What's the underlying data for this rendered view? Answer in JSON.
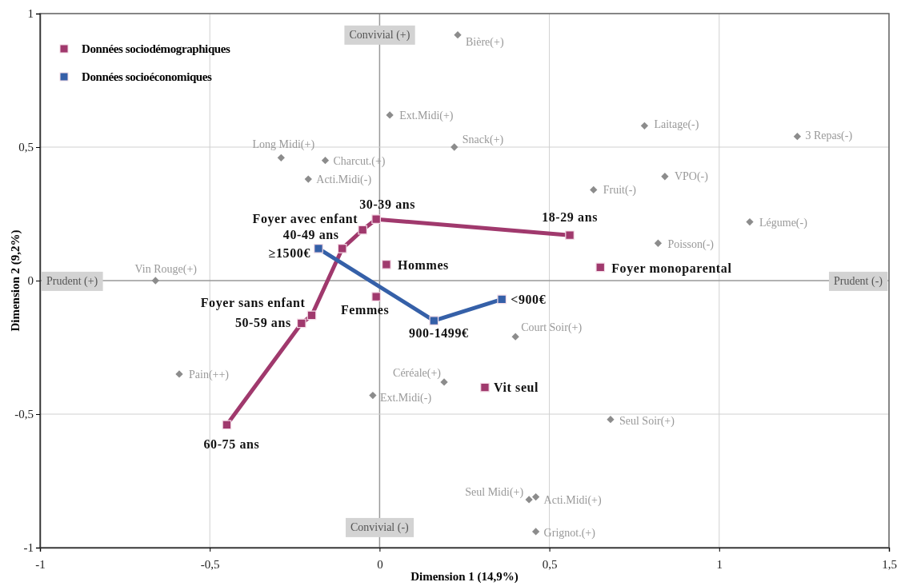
{
  "chart_data": {
    "type": "scatter",
    "xlabel": "Dimension 1 (14,9%)",
    "ylabel": "Dimension 2 (9,2%)",
    "xlim": [
      -1,
      1.5
    ],
    "ylim": [
      -1,
      1
    ],
    "xticks": [
      -1,
      {
        "value": -0.5,
        "label": "-0,5"
      },
      0,
      {
        "value": 0.5,
        "label": "0,5"
      },
      1,
      {
        "value": 1.5,
        "label": "1,5"
      }
    ],
    "yticks": [
      -1,
      {
        "value": -0.5,
        "label": "-0,5"
      },
      0,
      {
        "value": 0.5,
        "label": "0,5"
      },
      1
    ],
    "grid": true,
    "legend": "top left",
    "marker": "square",
    "series": [
      {
        "marker": "diamond",
        "color": "#8c8c8c",
        "x": [
          0.23,
          0.03,
          0.22,
          0.78,
          1.23,
          -0.29,
          -0.16,
          -0.21,
          0.84,
          0.63,
          1.09,
          0.82,
          -0.66,
          0.4,
          -0.59,
          0.19,
          -0.02,
          0.68,
          0.44,
          0.46,
          0.46
        ],
        "values": [
          0.92,
          0.62,
          0.5,
          0.58,
          0.54,
          0.46,
          0.45,
          0.38,
          0.39,
          0.34,
          0.22,
          0.14,
          0.0,
          -0.21,
          -0.35,
          -0.38,
          -0.43,
          -0.52,
          -0.82,
          -0.81,
          -0.94
        ]
      },
      {
        "type": "line",
        "name": "Données sociodémographiques",
        "color": "#a0396d",
        "x": [
          -0.45,
          -0.23,
          -0.2,
          -0.11,
          -0.05,
          -0.01,
          0.56
        ],
        "values": [
          -0.54,
          -0.16,
          -0.13,
          0.12,
          0.19,
          0.23,
          0.17
        ]
      },
      {
        "color": "#a0396d",
        "x": [
          0.02,
          -0.01,
          0.65,
          0.31
        ],
        "values": [
          0.06,
          -0.06,
          0.05,
          -0.4
        ]
      },
      {
        "type": "line",
        "name": "Données socioéconomiques",
        "color": "#3560a8",
        "x": [
          -0.18,
          0.16,
          0.36
        ],
        "values": [
          0.12,
          -0.15,
          -0.07
        ]
      }
    ],
    "annotations": [
      "Convivial  (+)",
      "Prudent  (+)",
      "Prudent  (-)",
      "Convivial (-)",
      {
        "text": "Bière(+)",
        "x": 0.23,
        "y": 0.92
      },
      {
        "text": "Ext.Midi(+)",
        "x": 0.03,
        "y": 0.62
      },
      {
        "text": "Snack(+)",
        "x": 0.22,
        "y": 0.5
      },
      {
        "text": "Laitage(-)",
        "x": 0.78,
        "y": 0.58
      },
      {
        "text": "3 Repas(-)",
        "x": 1.23,
        "y": 0.54
      },
      {
        "text": "Long Midi(+)",
        "x": -0.29,
        "y": 0.46
      },
      {
        "text": "Charcut.(+)",
        "x": -0.16,
        "y": 0.45
      },
      {
        "text": "Acti.Midi(-)",
        "x": -0.21,
        "y": 0.38
      },
      {
        "text": "VPO(-)",
        "x": 0.84,
        "y": 0.39
      },
      {
        "text": "Fruit(-)",
        "x": 0.63,
        "y": 0.34
      },
      {
        "text": "Légume(-)",
        "x": 1.09,
        "y": 0.22
      },
      {
        "text": "Poisson(-)",
        "x": 0.82,
        "y": 0.14
      },
      {
        "text": "Vin Rouge(+)",
        "x": -0.66,
        "y": 0.0
      },
      {
        "text": "Court Soir(+)",
        "x": 0.4,
        "y": -0.21
      },
      {
        "text": "Pain(++)",
        "x": -0.59,
        "y": -0.35
      },
      {
        "text": "Céréale(+)",
        "x": 0.19,
        "y": -0.38
      },
      {
        "text": "Ext.Midi(-)",
        "x": -0.02,
        "y": -0.43
      },
      {
        "text": "Seul Soir(+)",
        "x": 0.68,
        "y": -0.52
      },
      {
        "text": "Seul Midi(+)",
        "x": 0.44,
        "y": -0.82
      },
      {
        "text": "Acti.Midi(+)",
        "x": 0.46,
        "y": -0.81
      },
      {
        "text": "Grignot.(+)",
        "x": 0.46,
        "y": -0.94
      },
      {
        "text": "60-75 ans",
        "x": -0.45,
        "y": -0.54
      },
      {
        "text": "50-59 ans",
        "x": -0.23,
        "y": -0.16
      },
      {
        "text": "Foyer sans enfant",
        "x": -0.2,
        "y": -0.13
      },
      {
        "text": "40-49 ans",
        "x": -0.11,
        "y": 0.12
      },
      {
        "text": "Foyer avec enfant",
        "x": -0.05,
        "y": 0.19
      },
      {
        "text": "30-39 ans",
        "x": -0.01,
        "y": 0.23
      },
      {
        "text": "18-29 ans",
        "x": 0.56,
        "y": 0.17
      },
      {
        "text": "Hommes",
        "x": 0.02,
        "y": 0.06
      },
      {
        "text": "Femmes",
        "x": -0.01,
        "y": -0.06
      },
      {
        "text": "Foyer monoparental",
        "x": 0.65,
        "y": 0.05
      },
      {
        "text": "Vit seul",
        "x": 0.31,
        "y": -0.4
      },
      {
        "text": "≥1500€",
        "x": -0.18,
        "y": 0.12
      },
      {
        "text": "900-1499€",
        "x": 0.16,
        "y": -0.15
      },
      {
        "text": "<900€",
        "x": 0.36,
        "y": -0.07
      }
    ]
  }
}
